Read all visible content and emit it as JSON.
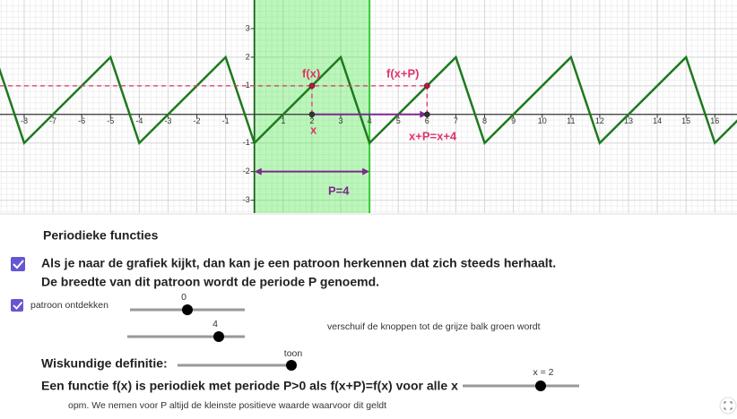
{
  "graph": {
    "xlim": [
      -8.84,
      16.77
    ],
    "ylim": [
      -3.45,
      4
    ],
    "xticks": [
      -8,
      -7,
      -6,
      -5,
      -4,
      -3,
      -2,
      -1,
      1,
      2,
      3,
      4,
      5,
      6,
      7,
      8,
      9,
      10,
      11,
      12,
      13,
      14,
      15,
      16
    ],
    "yticks": [
      -3,
      -2,
      -1,
      1,
      2,
      3
    ],
    "period": 4,
    "pattern": {
      "x": [
        0,
        3,
        4
      ],
      "y": [
        -1,
        2,
        -1
      ]
    },
    "band": [
      0,
      4
    ],
    "point_x": 2,
    "point_fx": 1,
    "point_xp": 6,
    "arrow_y": -2,
    "labels": {
      "fx": "f(x)",
      "fxp": "f(x+P)",
      "x": "x",
      "xp": "x+P=x+4",
      "P": "P=4"
    }
  },
  "panel": {
    "title": "Periodieke functies",
    "line1": "Als je naar de grafiek kijkt, dan kan je een patroon herkennen dat zich steeds herhaalt.",
    "line2": "De breedte van dit patroon wordt de periode P genoemd.",
    "checkbox": "patroon ontdekken",
    "slider1": "0",
    "slider2": "4",
    "hint": "verschuif de knoppen tot de grijze balk groen wordt",
    "definition": "Wiskundige definitie:",
    "slider3": "toon",
    "statement": "Een functie f(x) is periodiek met periode P>0 als f(x+P)=f(x) voor alle x",
    "slider4": "x = 2",
    "note": "opm. We nemen voor P altijd de kleinste positieve waarde waarvoor dit geldt"
  }
}
